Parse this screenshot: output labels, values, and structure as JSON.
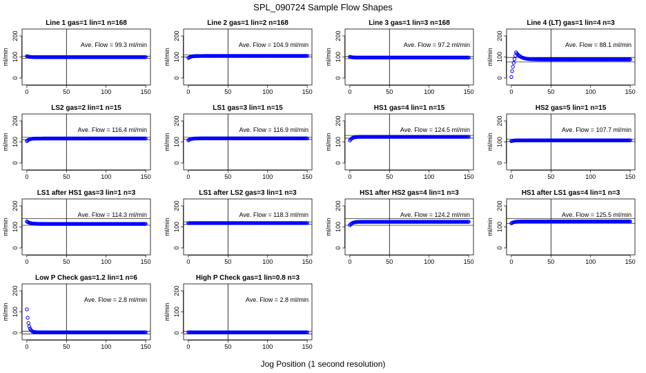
{
  "figure": {
    "title": "SPL_090724  Sample Flow Shapes",
    "xlabel": "Jog Position (1 second resolution)"
  },
  "colors": {
    "points": "#0000ff",
    "axes": "#000000",
    "background": "#ffffff"
  },
  "chart_data": [
    {
      "type": "scatter",
      "title": "Line 1 gas=1 lin=1 n=168",
      "ylabel": "ml/min",
      "xlim": [
        0,
        150
      ],
      "ylim": [
        0,
        200
      ],
      "xticks": [
        "0",
        "50",
        "100",
        "150"
      ],
      "yticks": [
        "0",
        "100",
        "200"
      ],
      "vline_x": 50,
      "annotation": "Ave. Flow =  99.3  ml/min",
      "mean": 99.3,
      "band": [
        94,
        104
      ],
      "shape": {
        "kind": "flat",
        "level": 99.3,
        "start_value": 104
      }
    },
    {
      "type": "scatter",
      "title": "Line 2 gas=1 lin=2 n=168",
      "ylabel": "ml/min",
      "xlim": [
        0,
        150
      ],
      "ylim": [
        0,
        200
      ],
      "xticks": [
        "0",
        "50",
        "100",
        "150"
      ],
      "yticks": [
        "0",
        "100",
        "200"
      ],
      "vline_x": 50,
      "annotation": "Ave. Flow =  104.9  ml/min",
      "mean": 104.9,
      "band": [
        100,
        110
      ],
      "shape": {
        "kind": "rise",
        "level": 104.9,
        "start_value": 95
      }
    },
    {
      "type": "scatter",
      "title": "Line 3 gas=1 lin=3 n=168",
      "ylabel": "ml/min",
      "xlim": [
        0,
        150
      ],
      "ylim": [
        0,
        200
      ],
      "xticks": [
        "0",
        "50",
        "100",
        "150"
      ],
      "yticks": [
        "0",
        "100",
        "200"
      ],
      "vline_x": 50,
      "annotation": "Ave. Flow =  97.2  ml/min",
      "mean": 97.2,
      "band": [
        92,
        102
      ],
      "shape": {
        "kind": "flat",
        "level": 97.2,
        "start_value": 101
      }
    },
    {
      "type": "scatter",
      "title": "Line 4 (LT) gas=1 lin=4 n=3",
      "ylabel": "ml/min",
      "xlim": [
        0,
        150
      ],
      "ylim": [
        0,
        200
      ],
      "xticks": [
        "0",
        "50",
        "100",
        "150"
      ],
      "yticks": [
        "0",
        "100",
        "200"
      ],
      "vline_x": 50,
      "annotation": "Ave. Flow =  88.1  ml/min",
      "mean": 88.1,
      "band": [
        76,
        98
      ],
      "shape": {
        "kind": "overshoot",
        "level": 88.1,
        "start_value": 5,
        "peak": 122
      }
    },
    {
      "type": "scatter",
      "title": "LS2 gas=2 lin=1 n=15",
      "ylabel": "ml/min",
      "xlim": [
        0,
        150
      ],
      "ylim": [
        0,
        200
      ],
      "xticks": [
        "0",
        "50",
        "100",
        "150"
      ],
      "yticks": [
        "0",
        "100",
        "200"
      ],
      "vline_x": 50,
      "annotation": "Ave. Flow =  116.4  ml/min",
      "mean": 116.4,
      "band": [
        111,
        122
      ],
      "shape": {
        "kind": "rise",
        "level": 116.4,
        "start_value": 104
      }
    },
    {
      "type": "scatter",
      "title": "LS1 gas=3 lin=1 n=15",
      "ylabel": "ml/min",
      "xlim": [
        0,
        150
      ],
      "ylim": [
        0,
        200
      ],
      "xticks": [
        "0",
        "50",
        "100",
        "150"
      ],
      "yticks": [
        "0",
        "100",
        "200"
      ],
      "vline_x": 50,
      "annotation": "Ave. Flow =  116.9  ml/min",
      "mean": 116.9,
      "band": [
        112,
        122
      ],
      "shape": {
        "kind": "rise",
        "level": 116.9,
        "start_value": 108
      }
    },
    {
      "type": "scatter",
      "title": "HS1 gas=4 lin=1 n=15",
      "ylabel": "ml/min",
      "xlim": [
        0,
        150
      ],
      "ylim": [
        0,
        200
      ],
      "xticks": [
        "0",
        "50",
        "100",
        "150"
      ],
      "yticks": [
        "0",
        "100",
        "200"
      ],
      "vline_x": 50,
      "annotation": "Ave. Flow =  124.5  ml/min",
      "mean": 124.5,
      "band": [
        118,
        131
      ],
      "shape": {
        "kind": "rise",
        "level": 124.5,
        "start_value": 107
      }
    },
    {
      "type": "scatter",
      "title": "HS2 gas=5 lin=1 n=15",
      "ylabel": "ml/min",
      "xlim": [
        0,
        150
      ],
      "ylim": [
        0,
        200
      ],
      "xticks": [
        "0",
        "50",
        "100",
        "150"
      ],
      "yticks": [
        "0",
        "100",
        "200"
      ],
      "vline_x": 50,
      "annotation": "Ave. Flow =  107.7  ml/min",
      "mean": 107.7,
      "band": [
        102,
        113
      ],
      "shape": {
        "kind": "flat",
        "level": 107.7,
        "start_value": 104
      }
    },
    {
      "type": "scatter",
      "title": "LS1 after HS1 gas=3 lin=1 n=3",
      "ylabel": "ml/min",
      "xlim": [
        0,
        150
      ],
      "ylim": [
        0,
        200
      ],
      "xticks": [
        "0",
        "50",
        "100",
        "150"
      ],
      "yticks": [
        "0",
        "100",
        "200"
      ],
      "vline_x": 50,
      "annotation": "Ave. Flow =  114.3  ml/min",
      "mean": 114.3,
      "band": [
        108,
        140
      ],
      "shape": {
        "kind": "decay",
        "level": 114.3,
        "start_value": 126
      }
    },
    {
      "type": "scatter",
      "title": "LS1 after LS2 gas=3 lin=1 n=3",
      "ylabel": "ml/min",
      "xlim": [
        0,
        150
      ],
      "ylim": [
        0,
        200
      ],
      "xticks": [
        "0",
        "50",
        "100",
        "150"
      ],
      "yticks": [
        "0",
        "100",
        "200"
      ],
      "vline_x": 50,
      "annotation": "Ave. Flow =  118.3  ml/min",
      "mean": 118.3,
      "band": [
        112,
        124
      ],
      "shape": {
        "kind": "flat",
        "level": 118.3,
        "start_value": 118
      }
    },
    {
      "type": "scatter",
      "title": "HS1 after HS2 gas=4 lin=1 n=3",
      "ylabel": "ml/min",
      "xlim": [
        0,
        150
      ],
      "ylim": [
        0,
        200
      ],
      "xticks": [
        "0",
        "50",
        "100",
        "150"
      ],
      "yticks": [
        "0",
        "100",
        "200"
      ],
      "vline_x": 50,
      "annotation": "Ave. Flow =  124.2  ml/min",
      "mean": 124.2,
      "band": [
        108,
        140
      ],
      "shape": {
        "kind": "rise",
        "level": 124.2,
        "start_value": 108
      }
    },
    {
      "type": "scatter",
      "title": "HS1 after LS1 gas=4 lin=1 n=3",
      "ylabel": "ml/min",
      "xlim": [
        0,
        150
      ],
      "ylim": [
        0,
        200
      ],
      "xticks": [
        "0",
        "50",
        "100",
        "150"
      ],
      "yticks": [
        "0",
        "100",
        "200"
      ],
      "vline_x": 50,
      "annotation": "Ave. Flow =  125.5  ml/min",
      "mean": 125.5,
      "band": [
        117,
        140
      ],
      "shape": {
        "kind": "rise",
        "level": 125.5,
        "start_value": 117
      }
    },
    {
      "type": "scatter",
      "title": "Low P Check gas=1.2 lin=1 n=6",
      "ylabel": "ml/min",
      "xlim": [
        0,
        150
      ],
      "ylim": [
        0,
        200
      ],
      "xticks": [
        "0",
        "50",
        "100",
        "150"
      ],
      "yticks": [
        "0",
        "100",
        "200"
      ],
      "vline_x": 50,
      "annotation": "Ave. Flow =  2.8  ml/min",
      "mean": 2.8,
      "band": [
        -5,
        8
      ],
      "shape": {
        "kind": "drop",
        "level": 2.8,
        "start_value": 112
      }
    },
    {
      "type": "scatter",
      "title": "High P Check gas=1 lin=0.8 n=3",
      "ylabel": "ml/min",
      "xlim": [
        0,
        150
      ],
      "ylim": [
        0,
        200
      ],
      "xticks": [
        "0",
        "50",
        "100",
        "150"
      ],
      "yticks": [
        "0",
        "100",
        "200"
      ],
      "vline_x": 50,
      "annotation": "Ave. Flow =  2.8  ml/min",
      "mean": 2.8,
      "band": [
        -5,
        8
      ],
      "shape": {
        "kind": "flat",
        "level": 2.8,
        "start_value": 2.8
      }
    }
  ]
}
